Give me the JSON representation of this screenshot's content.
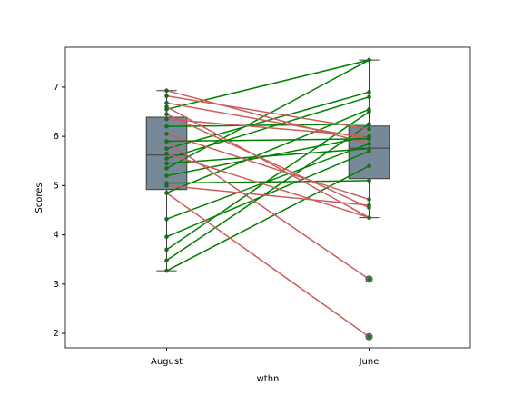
{
  "chart_data": {
    "type": "box-paired",
    "xlabel": "wthn",
    "ylabel": "Scores",
    "categories": [
      "August",
      "June"
    ],
    "values": [
      [
        3.27,
        3.48,
        3.7,
        3.96,
        4.32,
        4.85,
        5.05,
        5.2,
        5.35,
        5.45,
        5.55,
        5.75,
        6.2,
        6.55,
        6.93,
        6.82,
        6.68,
        6.6,
        6.45,
        6.35,
        6.05,
        5.9,
        5.65,
        5.0,
        4.85,
        5.9
      ],
      [
        5.4,
        6.25,
        6.5,
        5.7,
        5.85,
        6.55,
        5.1,
        6.0,
        7.55,
        5.75,
        6.8,
        6.9,
        6.25,
        7.55,
        5.85,
        6.15,
        5.95,
        4.35,
        4.55,
        6.0,
        4.72,
        3.1,
        4.35,
        4.6,
        1.93,
        5.95
      ]
    ],
    "boxes": [
      {
        "q1": 4.92,
        "median": 5.62,
        "q3": 6.39,
        "whislo": 3.27,
        "whishi": 6.93,
        "fliers": []
      },
      {
        "q1": 5.14,
        "median": 5.76,
        "q3": 6.21,
        "whislo": 4.35,
        "whishi": 7.55,
        "fliers": [
          3.1,
          1.93
        ]
      }
    ],
    "box_color": "#778899",
    "increase_color": "#008000",
    "decrease_color": "#cd5c5c",
    "point_color": "#1f6b1f",
    "xlim": [
      -0.5,
      1.5
    ],
    "ylim": [
      1.705,
      7.81
    ],
    "yticks": [
      2,
      3,
      4,
      5,
      6,
      7
    ]
  }
}
